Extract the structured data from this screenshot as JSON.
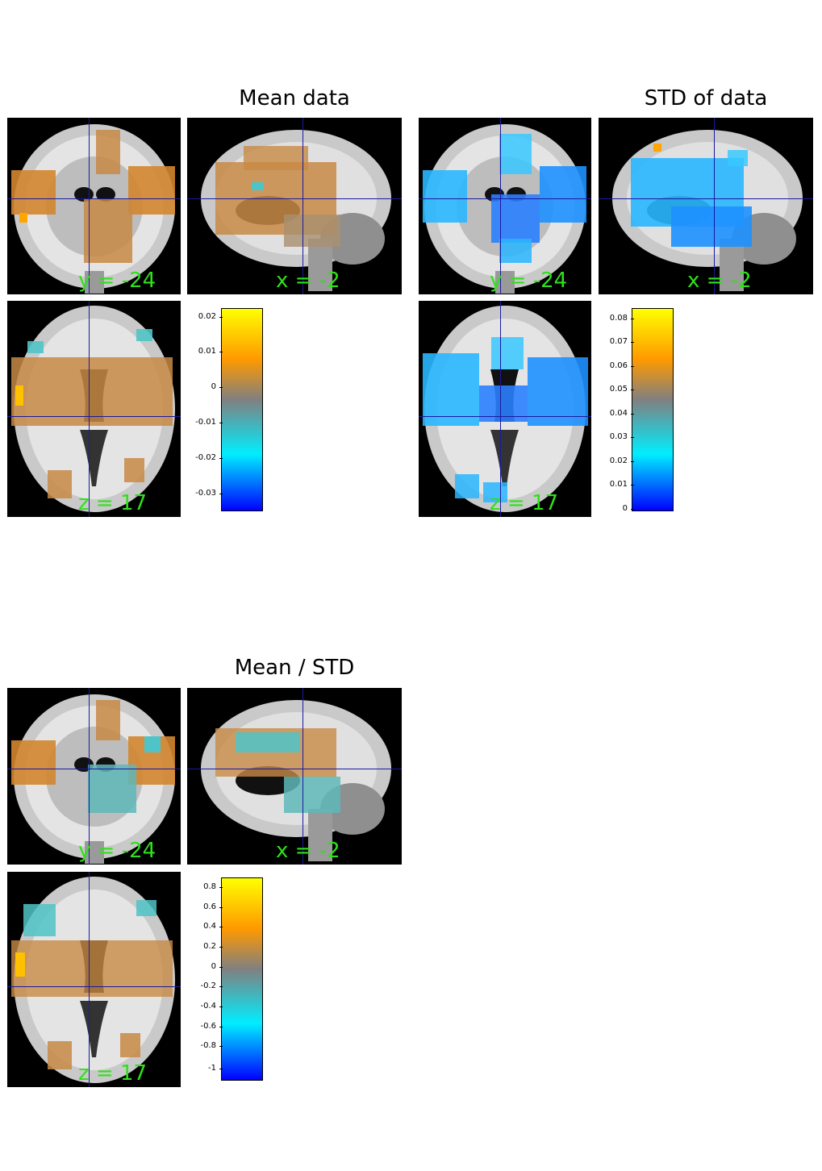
{
  "panels": [
    {
      "id": "mean",
      "title": "Mean data",
      "palette": "diverging",
      "coronal_label": "y = -24",
      "sagittal_label": "x = -2",
      "axial_label": "z = 17",
      "colorbar_ticks": [
        "0.02",
        "0.01",
        "0",
        "-0.01",
        "-0.02",
        "-0.03"
      ],
      "colors": {
        "top": "#ffff00",
        "upper": "#ff8c00",
        "mid": "#808080",
        "lower": "#00e5ff",
        "bottom": "#0000ff"
      }
    },
    {
      "id": "std",
      "title": "STD of data",
      "palette": "sequential",
      "coronal_label": "y = -24",
      "sagittal_label": "x = -2",
      "axial_label": "z = 17",
      "colorbar_ticks": [
        "0.08",
        "0.07",
        "0.06",
        "0.05",
        "0.04",
        "0.03",
        "0.02",
        "0.01",
        "0"
      ],
      "colors": {
        "top": "#ffff00",
        "upper": "#ff8c00",
        "mid": "#808080",
        "lower": "#00e5ff",
        "bottom": "#0000ff"
      }
    },
    {
      "id": "ratio",
      "title": "Mean / STD",
      "palette": "diverging",
      "coronal_label": "y = -24",
      "sagittal_label": "x = -2",
      "axial_label": "z = 17",
      "colorbar_ticks": [
        "0.8",
        "0.6",
        "0.4",
        "0.2",
        "0",
        "-0.2",
        "-0.4",
        "-0.6",
        "-0.8",
        "-1"
      ],
      "colors": {
        "top": "#ffff00",
        "upper": "#ff8c00",
        "mid": "#808080",
        "lower": "#00e5ff",
        "bottom": "#0000ff"
      }
    }
  ]
}
